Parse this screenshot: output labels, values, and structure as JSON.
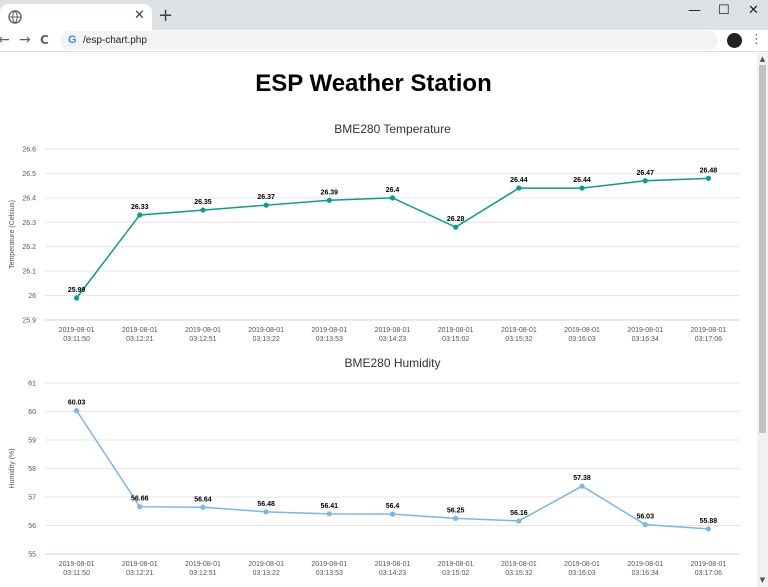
{
  "browser": {
    "tab_favicon": "globe-icon",
    "tab_close_label": "✕",
    "new_tab_label": "+",
    "minimize_label": "—",
    "maximize_label": "☐",
    "close_label": "✕",
    "back_label": "←",
    "forward_label": "→",
    "reload_label": "C",
    "google_icon_label": "G",
    "url": "/esp-chart.php",
    "menu_label": "⋮",
    "scroll_up_label": "▲",
    "scroll_down_label": "▼"
  },
  "page": {
    "title": "ESP Weather Station"
  },
  "chart_data": [
    {
      "type": "line",
      "title": "BME280 Temperature",
      "xlabel": "",
      "ylabel": "Temperature (Celsius)",
      "color": "#059e8a",
      "ylim": [
        25.9,
        26.6
      ],
      "yticks": [
        "25.9",
        "26",
        "26.1",
        "26.2",
        "26.3",
        "26.4",
        "26.5",
        "26.6"
      ],
      "grid": true,
      "x": [
        [
          "2019-08-01",
          "03:11:50"
        ],
        [
          "2019-08-01",
          "03:12:21"
        ],
        [
          "2019-08-01",
          "03:12:51"
        ],
        [
          "2019-08-01",
          "03:13:22"
        ],
        [
          "2019-08-01",
          "03:13:53"
        ],
        [
          "2019-08-01",
          "03:14:23"
        ],
        [
          "2019-08-01",
          "03:15:02"
        ],
        [
          "2019-08-01",
          "03:15:32"
        ],
        [
          "2019-08-01",
          "03:16:03"
        ],
        [
          "2019-08-01",
          "03:16:34"
        ],
        [
          "2019-08-01",
          "03:17:06"
        ]
      ],
      "values": [
        25.99,
        26.33,
        26.35,
        26.37,
        26.39,
        26.4,
        26.28,
        26.44,
        26.44,
        26.47,
        26.48
      ],
      "data_labels": [
        "25.99",
        "26.33",
        "26.35",
        "26.37",
        "26.39",
        "26.4",
        "26.28",
        "26.44",
        "26.44",
        "26.47",
        "26.48"
      ]
    },
    {
      "type": "line",
      "title": "BME280 Humidity",
      "xlabel": "",
      "ylabel": "Humidity (%)",
      "color": "#7cb5ec",
      "ylim": [
        55,
        61
      ],
      "yticks": [
        "55",
        "56",
        "57",
        "58",
        "59",
        "60",
        "61"
      ],
      "grid": true,
      "x": [
        [
          "2019-08-01",
          "03:11:50"
        ],
        [
          "2019-08-01",
          "03:12:21"
        ],
        [
          "2019-08-01",
          "03:12:51"
        ],
        [
          "2019-08-01",
          "03:13:22"
        ],
        [
          "2019-08-01",
          "03:13:53"
        ],
        [
          "2019-08-01",
          "03:14:23"
        ],
        [
          "2019-08-01",
          "03:15:02"
        ],
        [
          "2019-08-01",
          "03:15:32"
        ],
        [
          "2019-08-01",
          "03:16:03"
        ],
        [
          "2019-08-01",
          "03:16:34"
        ],
        [
          "2019-08-01",
          "03:17:06"
        ]
      ],
      "values": [
        60.03,
        56.66,
        56.64,
        56.48,
        56.41,
        56.4,
        56.25,
        56.16,
        57.38,
        56.03,
        55.88
      ],
      "data_labels": [
        "60.03",
        "56.66",
        "56.64",
        "56.48",
        "56.41",
        "56.4",
        "56.25",
        "56.16",
        "57.38",
        "56.03",
        "55.88"
      ]
    }
  ]
}
